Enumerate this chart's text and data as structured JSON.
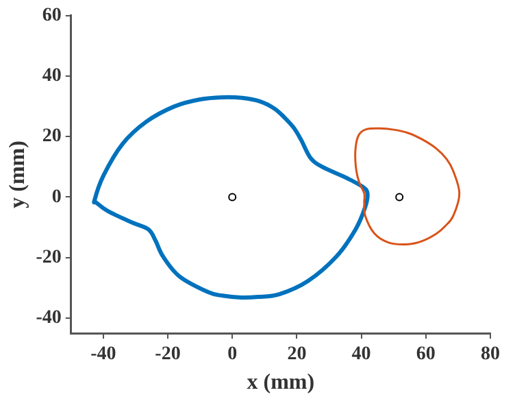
{
  "chart_data": {
    "type": "scatter",
    "xlabel": "x (mm)",
    "ylabel": "y (mm)",
    "xlim": [
      -50,
      80
    ],
    "ylim": [
      -45,
      60
    ],
    "xticks": [
      -40,
      -20,
      0,
      20,
      40,
      60,
      80
    ],
    "yticks": [
      -40,
      -20,
      0,
      20,
      40,
      60
    ],
    "grid": false,
    "legend": false,
    "marker": "circle",
    "series": [
      {
        "color": "#000000",
        "x": [
          0,
          51.8
        ],
        "values": [
          0,
          0
        ]
      }
    ]
  }
}
